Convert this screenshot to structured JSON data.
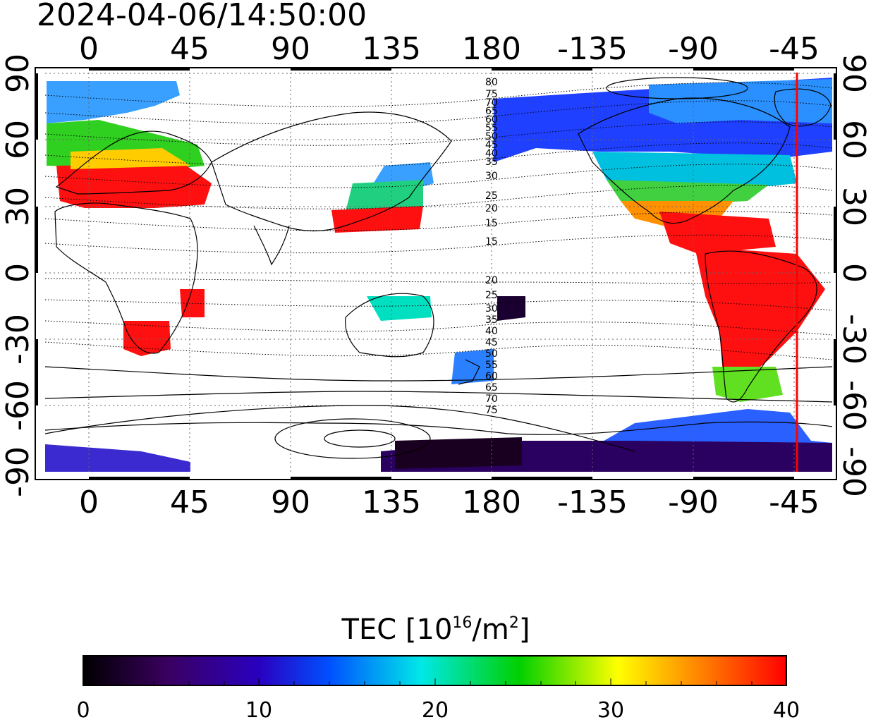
{
  "title": "2024-04-06/14:50:00",
  "map": {
    "lon_ticks": [
      "0",
      "45",
      "90",
      "135",
      "180",
      "-135",
      "-90",
      "-45"
    ],
    "lat_ticks": [
      "90",
      "60",
      "30",
      "0",
      "-30",
      "-60",
      "-90"
    ],
    "contour_labels": [
      "80",
      "75",
      "70",
      "65",
      "60",
      "55",
      "50",
      "45",
      "40",
      "35",
      "30",
      "25",
      "20",
      "15",
      "15",
      "20",
      "25",
      "30",
      "35",
      "40",
      "45",
      "50",
      "55",
      "60",
      "65",
      "70",
      "75"
    ],
    "terminator_color": "#ff0000"
  },
  "colorbar": {
    "title_prefix": "TEC  [10",
    "title_exp": "16",
    "title_mid": "/m",
    "title_exp2": "2",
    "title_suffix": "]",
    "ticks": [
      "0",
      "10",
      "20",
      "30",
      "40"
    ],
    "range": [
      0,
      40
    ],
    "stops": [
      "#000000",
      "#3a0060",
      "#2a00c0",
      "#0050ff",
      "#00e8e8",
      "#00d000",
      "#ffff00",
      "#ff8000",
      "#ff0000"
    ]
  }
}
